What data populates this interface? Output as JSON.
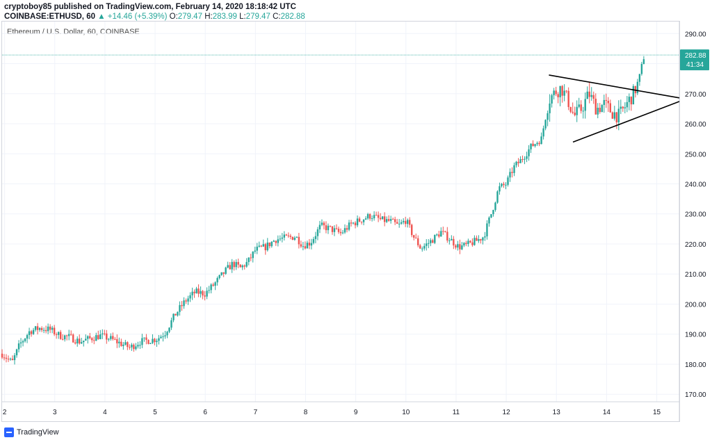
{
  "header": {
    "line1": "cryptoboy85 published on TradingView.com, February 14, 2020 18:18:42 UTC",
    "symbol": "COINBASE:ETHUSD, 60",
    "change": "▲ +14.46 (+5.39%)",
    "o_label": "O:",
    "o_value": "279.47",
    "h_label": "H:",
    "h_value": "283.99",
    "l_label": "L:",
    "l_value": "279.47",
    "c_label": "C:",
    "c_value": "282.88"
  },
  "inner_title": "Ethereum / U.S. Dollar, 60, COINBASE",
  "footer": {
    "brand": "TradingView"
  },
  "colors": {
    "up": "#26a69a",
    "down": "#ef5350",
    "grid": "#f0f3fa",
    "price_line": "#26a69a"
  },
  "chart_data": {
    "type": "candlestick",
    "x_unit": "day (February 2020)",
    "xlim": [
      1.95,
      15.45
    ],
    "ylim": [
      167.5,
      294
    ],
    "x_ticks": [
      2,
      3,
      4,
      5,
      6,
      7,
      8,
      9,
      10,
      11,
      12,
      13,
      14,
      15
    ],
    "y_ticks": [
      170,
      180,
      190,
      200,
      210,
      220,
      230,
      240,
      250,
      260,
      270,
      280,
      290
    ],
    "last_price": 282.88,
    "last_price_label": "282.88",
    "countdown_label": "41:34",
    "grid": true,
    "trendlines": [
      {
        "x1": 12.85,
        "y1": 276.2,
        "x2": 15.45,
        "y2": 268.6
      },
      {
        "x1": 13.33,
        "y1": 253.9,
        "x2": 15.45,
        "y2": 267.4
      }
    ],
    "close_path": [
      [
        1.95,
        183.5
      ],
      [
        2.15,
        180.5
      ],
      [
        2.3,
        186.5
      ],
      [
        2.5,
        191
      ],
      [
        2.7,
        192
      ],
      [
        2.9,
        191.5
      ],
      [
        3.1,
        189.5
      ],
      [
        3.3,
        189
      ],
      [
        3.5,
        187.5
      ],
      [
        3.7,
        188.5
      ],
      [
        3.9,
        189.5
      ],
      [
        4.1,
        188.5
      ],
      [
        4.3,
        187
      ],
      [
        4.5,
        185.5
      ],
      [
        4.7,
        187.5
      ],
      [
        4.9,
        188
      ],
      [
        5.05,
        188.5
      ],
      [
        5.2,
        190.5
      ],
      [
        5.4,
        196.5
      ],
      [
        5.6,
        201
      ],
      [
        5.8,
        204
      ],
      [
        6.0,
        203.5
      ],
      [
        6.2,
        207
      ],
      [
        6.4,
        211
      ],
      [
        6.55,
        213.5
      ],
      [
        6.7,
        212
      ],
      [
        6.85,
        214
      ],
      [
        7.0,
        218
      ],
      [
        7.2,
        219
      ],
      [
        7.4,
        221.5
      ],
      [
        7.6,
        222
      ],
      [
        7.8,
        222.5
      ],
      [
        7.95,
        219.5
      ],
      [
        8.1,
        220.5
      ],
      [
        8.3,
        226
      ],
      [
        8.5,
        225
      ],
      [
        8.7,
        223.5
      ],
      [
        8.9,
        226.5
      ],
      [
        9.1,
        228
      ],
      [
        9.3,
        229.5
      ],
      [
        9.5,
        228
      ],
      [
        9.7,
        227.5
      ],
      [
        9.85,
        226
      ],
      [
        10.0,
        228
      ],
      [
        10.15,
        222.5
      ],
      [
        10.3,
        218.5
      ],
      [
        10.5,
        221
      ],
      [
        10.7,
        224
      ],
      [
        10.85,
        222
      ],
      [
        11.05,
        219
      ],
      [
        11.2,
        219.5
      ],
      [
        11.4,
        221
      ],
      [
        11.55,
        222.5
      ],
      [
        11.7,
        230
      ],
      [
        11.85,
        238.5
      ],
      [
        12.0,
        240
      ],
      [
        12.15,
        245.5
      ],
      [
        12.3,
        248
      ],
      [
        12.5,
        252.5
      ],
      [
        12.7,
        255
      ],
      [
        12.85,
        268
      ],
      [
        13.0,
        271
      ],
      [
        13.1,
        272
      ],
      [
        13.25,
        267
      ],
      [
        13.35,
        262.5
      ],
      [
        13.5,
        265
      ],
      [
        13.65,
        270
      ],
      [
        13.8,
        265
      ],
      [
        13.95,
        266.5
      ],
      [
        14.1,
        264
      ],
      [
        14.25,
        262.5
      ],
      [
        14.4,
        266.5
      ],
      [
        14.55,
        270.5
      ],
      [
        14.65,
        275
      ],
      [
        14.75,
        282.88
      ]
    ]
  }
}
